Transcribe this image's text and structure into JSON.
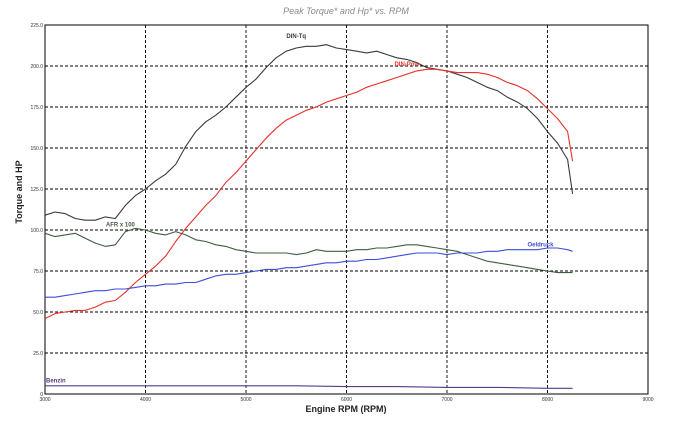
{
  "chart_data": {
    "type": "line",
    "title": "Peak Torque* and Hp* vs. RPM",
    "xlabel": "Engine RPM (RPM)",
    "ylabel": "Torque and HP",
    "xlim": [
      3000,
      9000
    ],
    "ylim": [
      0,
      225
    ],
    "xticks": [
      "3000",
      "4000",
      "5000",
      "6000",
      "7000",
      "8000",
      "9000"
    ],
    "yticks": [
      "0",
      "25.0",
      "50.0",
      "75.0",
      "100.0",
      "125.0",
      "150.0",
      "175.0",
      "200.0",
      "225.0"
    ],
    "grid": true,
    "legend": "inline labels",
    "series": [
      {
        "name": "DIN-Tq",
        "color": "#3a3a3a",
        "x": [
          3000,
          3100,
          3200,
          3300,
          3400,
          3500,
          3600,
          3700,
          3800,
          3900,
          4000,
          4100,
          4200,
          4300,
          4400,
          4500,
          4600,
          4700,
          4800,
          4900,
          5000,
          5100,
          5200,
          5300,
          5400,
          5500,
          5600,
          5700,
          5800,
          5900,
          6000,
          6100,
          6200,
          6300,
          6400,
          6500,
          6600,
          6700,
          6800,
          6900,
          7000,
          7100,
          7200,
          7300,
          7400,
          7500,
          7600,
          7700,
          7800,
          7900,
          8000,
          8100,
          8200,
          8250
        ],
        "y": [
          109,
          111,
          110,
          107,
          106,
          106,
          108,
          107,
          115,
          121,
          125,
          130,
          134,
          140,
          151,
          160,
          166,
          170,
          175,
          181,
          187,
          192,
          199,
          205,
          209,
          211,
          212,
          212,
          213,
          211,
          210,
          209,
          208,
          209,
          207,
          205,
          204,
          202,
          199,
          198,
          197,
          195,
          193,
          190,
          187,
          185,
          181,
          178,
          174,
          168,
          160,
          153,
          143,
          122
        ]
      },
      {
        "name": "DIN-Pow",
        "color": "#e8312a",
        "x": [
          3000,
          3100,
          3200,
          3300,
          3400,
          3500,
          3600,
          3700,
          3800,
          3900,
          4000,
          4100,
          4200,
          4300,
          4400,
          4500,
          4600,
          4700,
          4800,
          4900,
          5000,
          5100,
          5200,
          5300,
          5400,
          5500,
          5600,
          5700,
          5800,
          5900,
          6000,
          6100,
          6200,
          6300,
          6400,
          6500,
          6600,
          6700,
          6800,
          6900,
          7000,
          7100,
          7200,
          7300,
          7400,
          7500,
          7600,
          7700,
          7800,
          7900,
          8000,
          8100,
          8200,
          8250
        ],
        "y": [
          46,
          49,
          50,
          51,
          51,
          53,
          56,
          57,
          62,
          68,
          73,
          78,
          84,
          93,
          101,
          108,
          115,
          121,
          129,
          135,
          142,
          149,
          156,
          162,
          167,
          170,
          173,
          175,
          178,
          180,
          182,
          184,
          187,
          189,
          191,
          193,
          195,
          197,
          198,
          198,
          197,
          196,
          196,
          196,
          195,
          193,
          190,
          188,
          185,
          180,
          174,
          168,
          160,
          142
        ]
      },
      {
        "name": "AFR x 100",
        "color": "#3f5e3f",
        "x": [
          3000,
          3100,
          3200,
          3300,
          3400,
          3500,
          3600,
          3700,
          3800,
          3900,
          4000,
          4100,
          4200,
          4300,
          4400,
          4500,
          4600,
          4700,
          4800,
          4900,
          5000,
          5100,
          5200,
          5300,
          5400,
          5500,
          5600,
          5700,
          5800,
          5900,
          6000,
          6100,
          6200,
          6300,
          6400,
          6500,
          6600,
          6700,
          6800,
          6900,
          7000,
          7100,
          7200,
          7300,
          7400,
          7500,
          7600,
          7700,
          7800,
          7900,
          8000,
          8100,
          8200,
          8250
        ],
        "y": [
          98,
          96,
          97,
          98,
          95,
          92,
          90,
          91,
          99,
          101,
          100,
          98,
          97,
          99,
          97,
          94,
          93,
          91,
          90,
          88,
          87,
          86,
          86,
          86,
          86,
          85,
          86,
          88,
          87,
          87,
          87,
          88,
          88,
          89,
          89,
          90,
          91,
          91,
          90,
          89,
          88,
          87,
          85,
          83,
          81,
          80,
          79,
          78,
          77,
          76,
          75,
          74,
          74,
          74
        ]
      },
      {
        "name": "Oeldruck",
        "color": "#3d4fd8",
        "x": [
          3000,
          3100,
          3200,
          3300,
          3400,
          3500,
          3600,
          3700,
          3800,
          3900,
          4000,
          4100,
          4200,
          4300,
          4400,
          4500,
          4600,
          4700,
          4800,
          4900,
          5000,
          5100,
          5200,
          5300,
          5400,
          5500,
          5600,
          5700,
          5800,
          5900,
          6000,
          6100,
          6200,
          6300,
          6400,
          6500,
          6600,
          6700,
          6800,
          6900,
          7000,
          7100,
          7200,
          7300,
          7400,
          7500,
          7600,
          7700,
          7800,
          7900,
          8000,
          8100,
          8200,
          8250
        ],
        "y": [
          59,
          59,
          60,
          61,
          62,
          63,
          63,
          64,
          64,
          65,
          66,
          66,
          67,
          67,
          68,
          68,
          70,
          72,
          73,
          73,
          74,
          75,
          76,
          76,
          77,
          77,
          78,
          79,
          80,
          80,
          81,
          81,
          82,
          82,
          83,
          84,
          85,
          86,
          86,
          86,
          85,
          86,
          86,
          86,
          87,
          87,
          88,
          88,
          88,
          88,
          89,
          89,
          88,
          87
        ]
      },
      {
        "name": "Benzin",
        "color": "#5a3a8a",
        "x": [
          3000,
          3500,
          4000,
          4500,
          5000,
          5500,
          6000,
          6500,
          7000,
          7500,
          8000,
          8250
        ],
        "y": [
          5,
          5,
          5,
          5,
          5,
          5,
          4.5,
          4.5,
          4,
          4,
          3.5,
          3.5
        ]
      }
    ]
  }
}
